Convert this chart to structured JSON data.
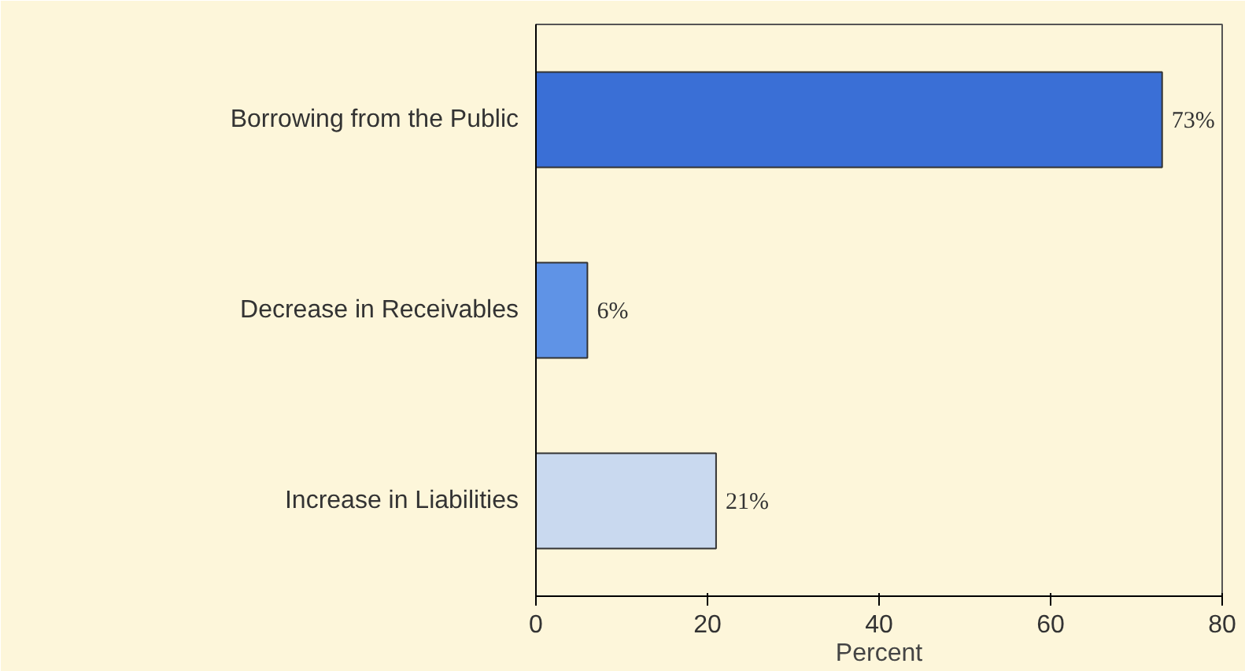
{
  "chart_data": {
    "type": "bar",
    "orientation": "horizontal",
    "xlabel": "Percent",
    "categories": [
      "Borrowing from the Public",
      "Decrease in Receivables",
      "Increase in Liabilities"
    ],
    "values": [
      73,
      6,
      21
    ],
    "colors": [
      "#3a6fd6",
      "#5f93e6",
      "#c9d9ef"
    ],
    "value_labels": [
      "73%",
      "6%",
      "21%"
    ],
    "xlim": [
      0,
      80
    ],
    "xticks": [
      0,
      20,
      40,
      60,
      80
    ],
    "grid": false
  }
}
